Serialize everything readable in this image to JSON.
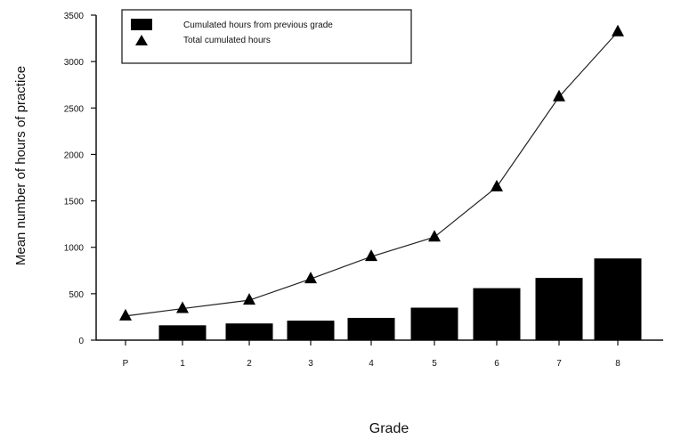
{
  "chart_data": {
    "type": "bar",
    "categories": [
      "P",
      "1",
      "2",
      "3",
      "4",
      "5",
      "6",
      "7",
      "8"
    ],
    "series": [
      {
        "name": "Cumulated hours from previous grade",
        "type": "bar",
        "values": [
          null,
          160,
          180,
          210,
          240,
          350,
          560,
          670,
          880
        ],
        "color": "#000000"
      },
      {
        "name": "Total cumulated hours",
        "type": "line",
        "marker": "triangle",
        "values": [
          260,
          340,
          430,
          660,
          900,
          1110,
          1650,
          2620,
          3320
        ],
        "color": "#000000"
      }
    ],
    "xlabel": "Grade",
    "ylabel": "Mean number of hours of practice",
    "ylim": [
      0,
      3500
    ],
    "yticks": [
      "0",
      "500",
      "1000",
      "1500",
      "2000",
      "2500",
      "3000",
      "3500"
    ],
    "ytick_values": [
      0,
      500,
      1000,
      1500,
      2000,
      2500,
      3000,
      3500
    ],
    "grid": false,
    "legend_position": "top-left"
  }
}
